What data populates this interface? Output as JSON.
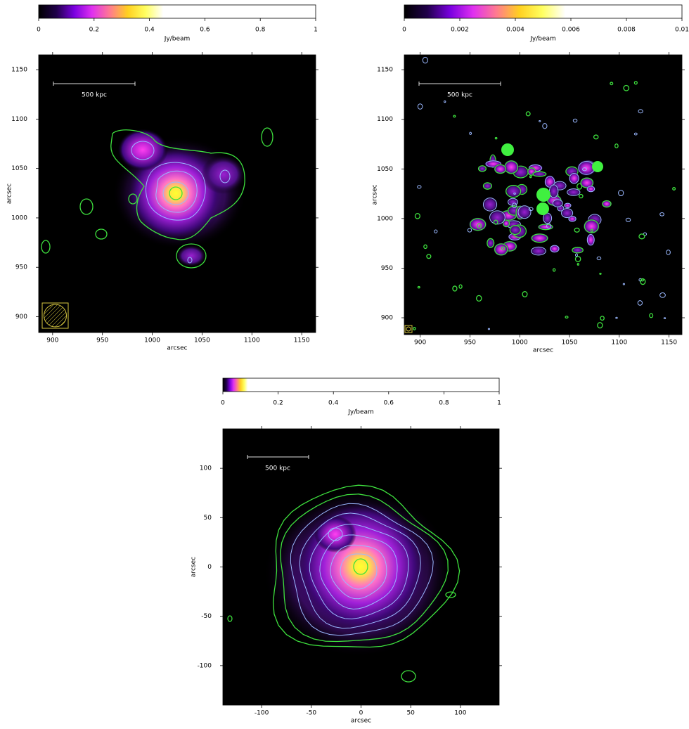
{
  "chart_data": [
    {
      "type": "image",
      "colorbar": {
        "label": "Jy/beam",
        "lim": [
          0,
          1
        ],
        "ticks": [
          0,
          0.2,
          0.4,
          0.6,
          0.8,
          1
        ]
      },
      "xlabel": "arcsec",
      "ylabel": "arcsec",
      "xlim": [
        886,
        1164
      ],
      "ylim": [
        884,
        1165
      ],
      "xticks": [
        900,
        950,
        1000,
        1050,
        1100,
        1150
      ],
      "yticks": [
        900,
        950,
        1000,
        1050,
        1100,
        1150
      ],
      "scale_bar": "500 kpc"
    },
    {
      "type": "image",
      "colorbar": {
        "label": "Jy/beam",
        "lim": [
          0,
          0.01
        ],
        "ticks": [
          0,
          0.002,
          0.004,
          0.006,
          0.008,
          0.01
        ]
      },
      "xlabel": "arcsec",
      "ylabel": "arcsec",
      "xlim": [
        884,
        1163
      ],
      "ylim": [
        883,
        1165
      ],
      "xticks": [
        900,
        950,
        1000,
        1050,
        1100,
        1150
      ],
      "yticks": [
        900,
        950,
        1000,
        1050,
        1100,
        1150
      ],
      "scale_bar": "500 kpc"
    },
    {
      "type": "image",
      "colorbar": {
        "label": "Jy/beam",
        "lim": [
          0,
          1
        ],
        "ticks": [
          0,
          0.2,
          0.4,
          0.6,
          0.8,
          1
        ]
      },
      "xlabel": "arcsec",
      "ylabel": "arcsec",
      "xlim": [
        -139,
        139
      ],
      "ylim": [
        -140,
        140
      ],
      "xticks": [
        -100,
        -50,
        0,
        50,
        100
      ],
      "yticks": [
        -100,
        -50,
        0,
        50,
        100
      ],
      "scale_bar": "500 kpc"
    }
  ]
}
